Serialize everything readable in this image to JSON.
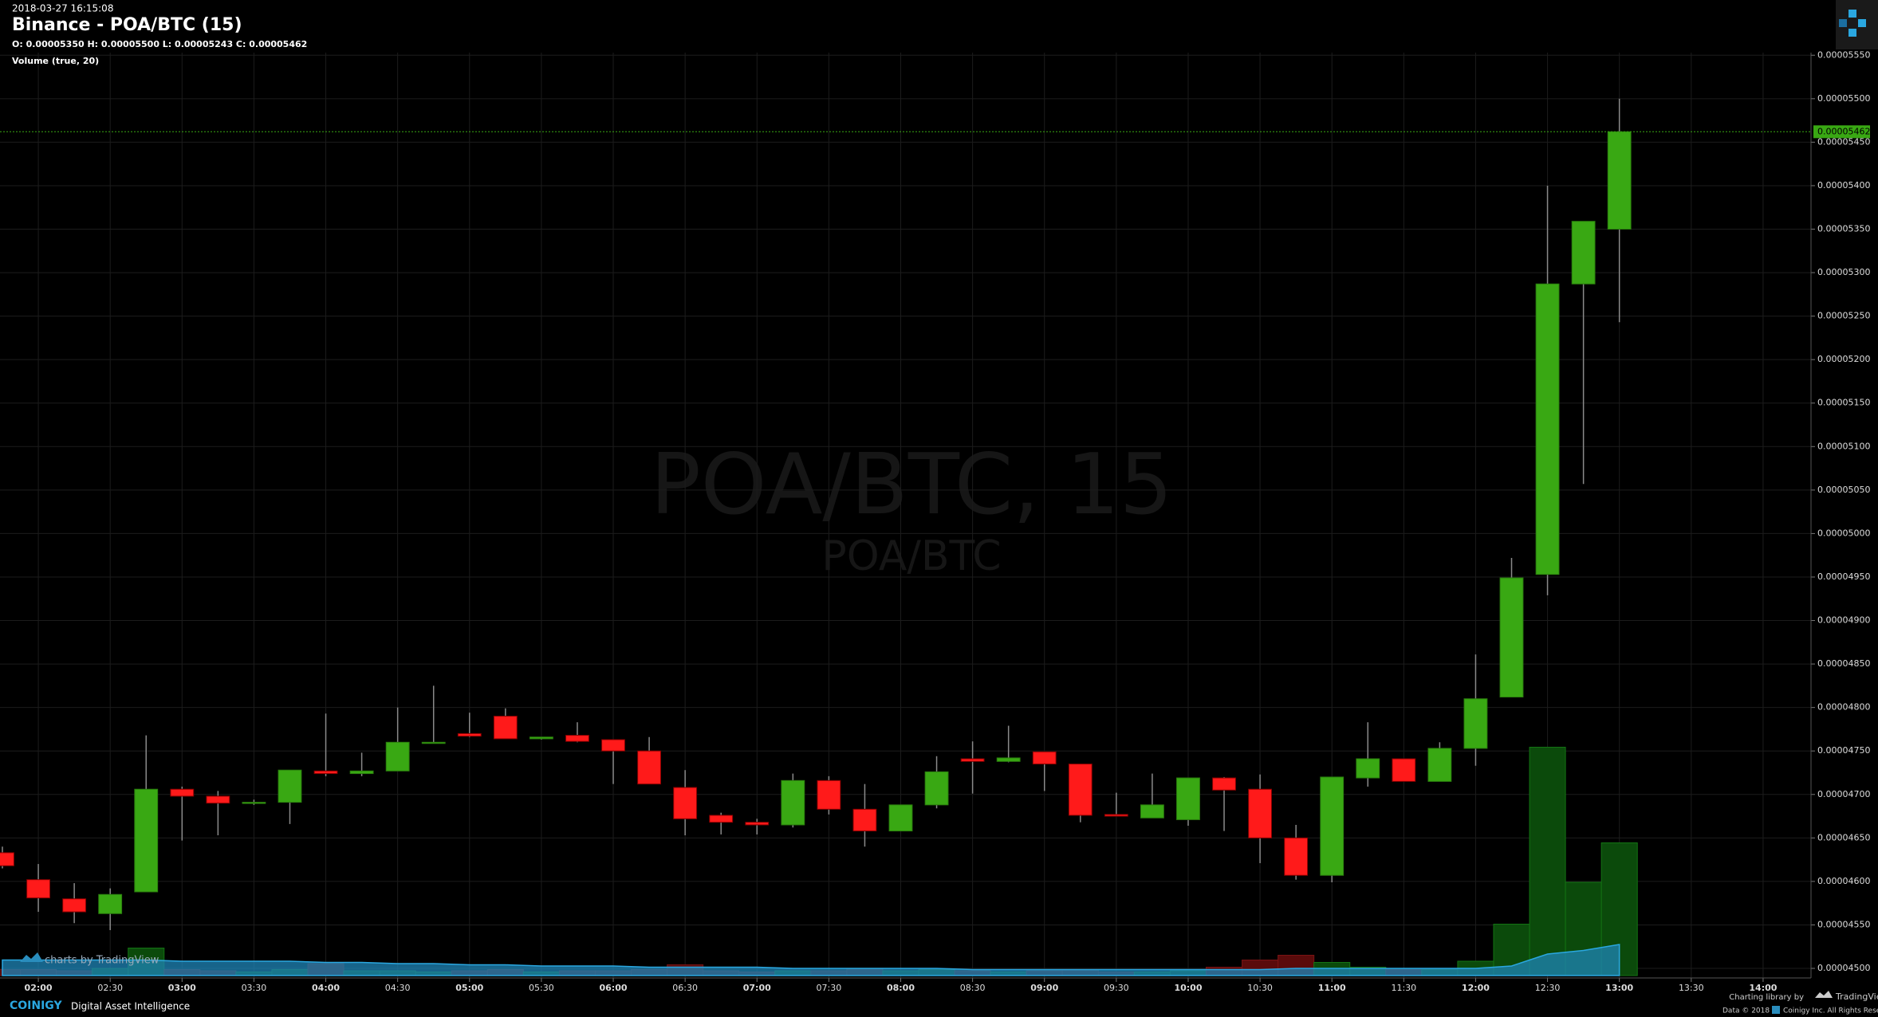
{
  "header": {
    "timestamp": "2018-03-27 16:15:08",
    "title": "Binance - POA/BTC (15)",
    "ohlc": "O: 0.00005350 H: 0.00005500 L: 0.00005243 C: 0.00005462",
    "study": "Volume (true, 20)"
  },
  "watermark": {
    "main": "POA/BTC, 15",
    "sub": "POA/BTC"
  },
  "footer": {
    "charts_by": "charts by TradingView",
    "brand": "COINIGY",
    "tagline": "Digital Asset Intelligence",
    "library": "Charting library by",
    "library_name": "TradingView",
    "data": "Data © 2018",
    "rights": "Coinigy Inc. All Rights Reserved"
  },
  "chart_data": {
    "type": "candlestick",
    "x": [
      "01:45",
      "02:00",
      "02:15",
      "02:30",
      "02:45",
      "03:00",
      "03:15",
      "03:30",
      "03:45",
      "04:00",
      "04:15",
      "04:30",
      "04:45",
      "05:00",
      "05:15",
      "05:30",
      "05:45",
      "06:00",
      "06:15",
      "06:30",
      "06:45",
      "07:00",
      "07:15",
      "07:30",
      "07:45",
      "08:00",
      "08:15",
      "08:30",
      "08:45",
      "09:00",
      "09:15",
      "09:30",
      "09:45",
      "10:00",
      "10:15",
      "10:30",
      "10:45",
      "11:00",
      "11:15",
      "11:30",
      "11:45",
      "12:00",
      "12:15",
      "12:30",
      "12:45",
      "13:00"
    ],
    "open": [
      4.633e-05,
      4.602e-05,
      4.58e-05,
      4.563e-05,
      4.588e-05,
      4.706e-05,
      4.698e-05,
      4.69e-05,
      4.691e-05,
      4.727e-05,
      4.724e-05,
      4.727e-05,
      4.759e-05,
      4.77e-05,
      4.79e-05,
      4.764e-05,
      4.768e-05,
      4.763e-05,
      4.75e-05,
      4.708e-05,
      4.676e-05,
      4.668e-05,
      4.665e-05,
      4.716e-05,
      4.683e-05,
      4.658e-05,
      4.688e-05,
      4.741e-05,
      4.738e-05,
      4.749e-05,
      4.735e-05,
      4.677e-05,
      4.673e-05,
      4.671e-05,
      4.719e-05,
      4.706e-05,
      4.65e-05,
      4.607e-05,
      4.719e-05,
      4.741e-05,
      4.715e-05,
      4.753e-05,
      4.812e-05,
      4.953e-05,
      5.287e-05,
      5.35e-05
    ],
    "high": [
      4.64e-05,
      4.62e-05,
      4.598e-05,
      4.592e-05,
      4.768e-05,
      4.709e-05,
      4.704e-05,
      4.694e-05,
      4.728e-05,
      4.793e-05,
      4.748e-05,
      4.8e-05,
      4.825e-05,
      4.794e-05,
      4.799e-05,
      4.766e-05,
      4.783e-05,
      4.763e-05,
      4.766e-05,
      4.728e-05,
      4.679e-05,
      4.672e-05,
      4.724e-05,
      4.721e-05,
      4.712e-05,
      4.688e-05,
      4.744e-05,
      4.761e-05,
      4.779e-05,
      4.749e-05,
      4.735e-05,
      4.702e-05,
      4.724e-05,
      4.719e-05,
      4.72e-05,
      4.723e-05,
      4.665e-05,
      4.72e-05,
      4.783e-05,
      4.741e-05,
      4.76e-05,
      4.861e-05,
      4.972e-05,
      5.4e-05,
      5.359e-05,
      5.5e-05
    ],
    "low": [
      4.615e-05,
      4.565e-05,
      4.552e-05,
      4.544e-05,
      4.588e-05,
      4.647e-05,
      4.653e-05,
      4.688e-05,
      4.666e-05,
      4.721e-05,
      4.721e-05,
      4.727e-05,
      4.759e-05,
      4.766e-05,
      4.764e-05,
      4.763e-05,
      4.76e-05,
      4.712e-05,
      4.712e-05,
      4.653e-05,
      4.654e-05,
      4.654e-05,
      4.662e-05,
      4.677e-05,
      4.64e-05,
      4.658e-05,
      4.684e-05,
      4.701e-05,
      4.737e-05,
      4.704e-05,
      4.668e-05,
      4.675e-05,
      4.673e-05,
      4.664e-05,
      4.658e-05,
      4.621e-05,
      4.602e-05,
      4.599e-05,
      4.709e-05,
      4.715e-05,
      4.715e-05,
      4.733e-05,
      4.812e-05,
      4.929e-05,
      5.057e-05,
      5.243e-05
    ],
    "close": [
      4.618e-05,
      4.581e-05,
      4.565e-05,
      4.585e-05,
      4.706e-05,
      4.698e-05,
      4.69e-05,
      4.691e-05,
      4.728e-05,
      4.724e-05,
      4.727e-05,
      4.76e-05,
      4.76e-05,
      4.767e-05,
      4.764e-05,
      4.766e-05,
      4.761e-05,
      4.75e-05,
      4.712e-05,
      4.672e-05,
      4.668e-05,
      4.665e-05,
      4.716e-05,
      4.683e-05,
      4.658e-05,
      4.688e-05,
      4.726e-05,
      4.738e-05,
      4.742e-05,
      4.735e-05,
      4.676e-05,
      4.675e-05,
      4.688e-05,
      4.719e-05,
      4.705e-05,
      4.65e-05,
      4.607e-05,
      4.72e-05,
      4.741e-05,
      4.715e-05,
      4.753e-05,
      4.81e-05,
      4.949e-05,
      5.287e-05,
      5.359e-05,
      5.462e-05
    ],
    "volume": [
      5,
      5,
      4,
      6,
      23,
      5,
      4,
      3,
      5,
      10,
      4,
      4,
      3,
      4,
      5,
      3,
      4,
      4,
      5,
      9,
      4,
      3,
      4,
      4,
      6,
      4,
      5,
      4,
      3,
      4,
      5,
      3,
      3,
      4,
      7,
      13,
      17,
      11,
      7,
      5,
      5,
      12,
      43,
      191,
      78,
      111
    ],
    "volume_ma": [
      13,
      13,
      13,
      13,
      13,
      12,
      12,
      12,
      12,
      11,
      11,
      10,
      10,
      9,
      9,
      8,
      8,
      8,
      7,
      7,
      7,
      7,
      6,
      6,
      6,
      6,
      6,
      5,
      5,
      5,
      5,
      5,
      5,
      5,
      5,
      5,
      6,
      6,
      6,
      6,
      6,
      6,
      8,
      18,
      21,
      26
    ],
    "volume_ylim": [
      0,
      250
    ],
    "xlim": [
      "01:44",
      "14:20"
    ],
    "xticks": [
      "02:00",
      "02:30",
      "03:00",
      "03:30",
      "04:00",
      "04:30",
      "05:00",
      "05:30",
      "06:00",
      "06:30",
      "07:00",
      "07:30",
      "08:00",
      "08:30",
      "09:00",
      "09:30",
      "10:00",
      "10:30",
      "11:00",
      "11:30",
      "12:00",
      "12:30",
      "13:00",
      "13:30",
      "14:00"
    ],
    "ylim": [
      4.489e-05,
      5.553e-05
    ],
    "yticks": [
      {
        "value": 4.5e-05,
        "label": "0.00004500"
      },
      {
        "value": 4.55e-05,
        "label": "0.00004550"
      },
      {
        "value": 4.6e-05,
        "label": "0.00004600"
      },
      {
        "value": 4.65e-05,
        "label": "0.00004650"
      },
      {
        "value": 4.7e-05,
        "label": "0.00004700"
      },
      {
        "value": 4.75e-05,
        "label": "0.00004750"
      },
      {
        "value": 4.8e-05,
        "label": "0.00004800"
      },
      {
        "value": 4.85e-05,
        "label": "0.00004850"
      },
      {
        "value": 4.9e-05,
        "label": "0.00004900"
      },
      {
        "value": 4.95e-05,
        "label": "0.00004950"
      },
      {
        "value": 5e-05,
        "label": "0.00005000"
      },
      {
        "value": 5.05e-05,
        "label": "0.00005050"
      },
      {
        "value": 5.1e-05,
        "label": "0.00005100"
      },
      {
        "value": 5.15e-05,
        "label": "0.00005150"
      },
      {
        "value": 5.2e-05,
        "label": "0.00005200"
      },
      {
        "value": 5.25e-05,
        "label": "0.00005250"
      },
      {
        "value": 5.3e-05,
        "label": "0.00005300"
      },
      {
        "value": 5.35e-05,
        "label": "0.00005350"
      },
      {
        "value": 5.4e-05,
        "label": "0.00005400"
      },
      {
        "value": 5.45e-05,
        "label": "0.00005450"
      },
      {
        "value": 5.5e-05,
        "label": "0.00005500"
      },
      {
        "value": 5.55e-05,
        "label": "0.00005550"
      }
    ],
    "last_price": {
      "value": 5.462e-05,
      "label": "0.00005462"
    },
    "grid": true,
    "up_color": "#39a813",
    "down_color": "#ff1a1a",
    "volume_up_color": "#0b4a0b",
    "volume_down_color": "#5a0b0b",
    "ma_color": "#1f86b8"
  }
}
